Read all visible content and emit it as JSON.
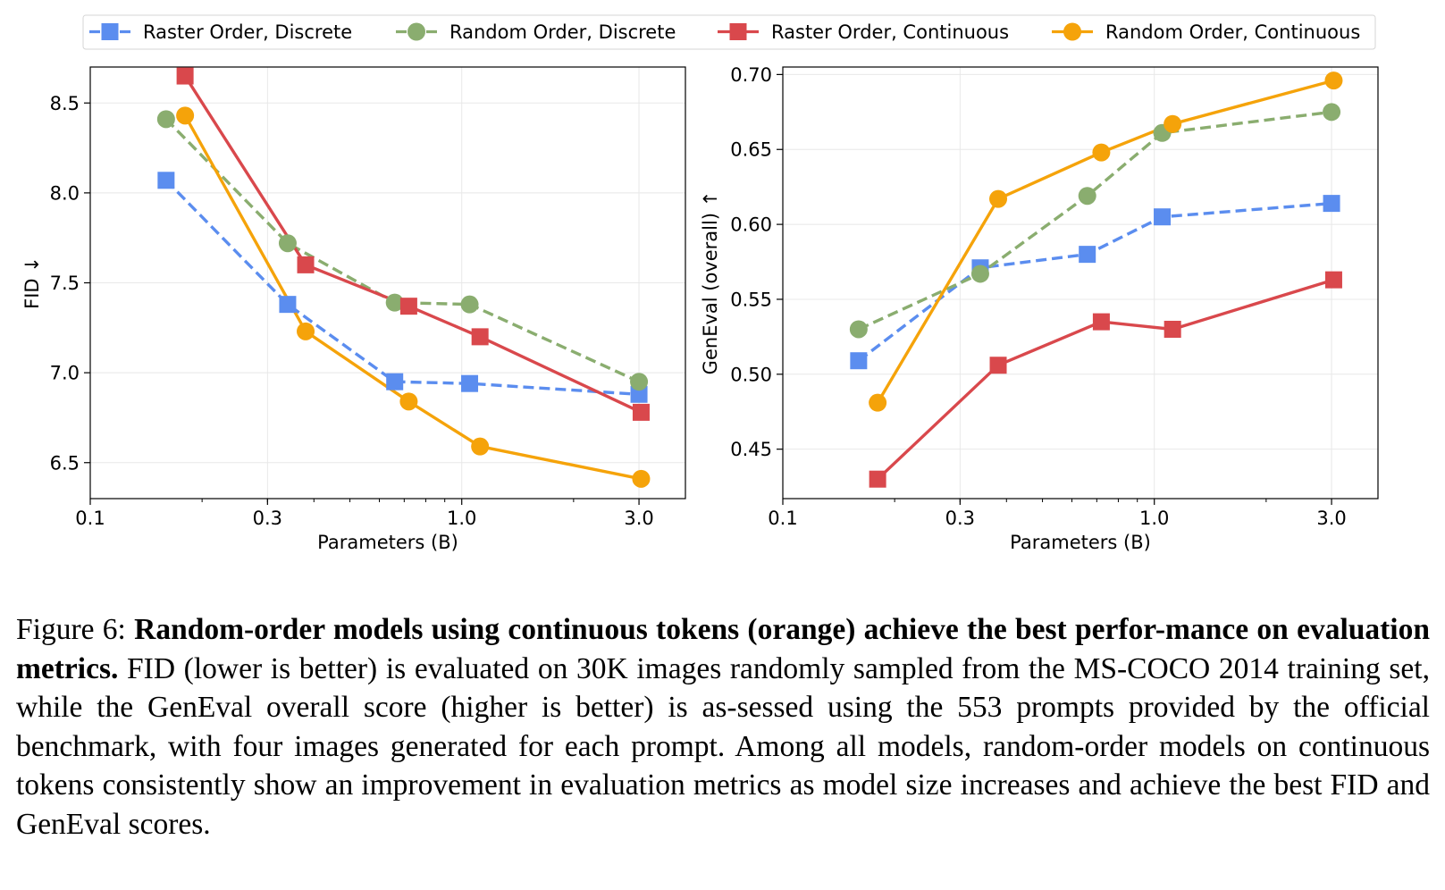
{
  "legend": {
    "entries": [
      {
        "name": "Raster Order, Discrete",
        "color": "#5b8def",
        "marker": "square",
        "dash": true
      },
      {
        "name": "Random Order, Discrete",
        "color": "#8aad6f",
        "marker": "circle",
        "dash": true
      },
      {
        "name": "Raster Order, Continuous",
        "color": "#d9484c",
        "marker": "square",
        "dash": false
      },
      {
        "name": "Random Order, Continuous",
        "color": "#f5a30a",
        "marker": "circle",
        "dash": false
      }
    ]
  },
  "chart_data": [
    {
      "type": "line",
      "xscale": "log",
      "xlabel": "Parameters (B)",
      "ylabel": "FID ↓",
      "xticks": [
        0.1,
        0.3,
        1.0,
        3.0
      ],
      "xticklabels": [
        "0.1",
        "0.3",
        "1.0",
        "3.0"
      ],
      "yticks": [
        6.5,
        7.0,
        7.5,
        8.0,
        8.5
      ],
      "yticklabels": [
        "6.5",
        "7.0",
        "7.5",
        "8.0",
        "8.5"
      ],
      "xlim": [
        0.1,
        4.0
      ],
      "ylim": [
        6.3,
        8.7
      ],
      "grid": true,
      "series": [
        {
          "name": "Raster Order, Discrete",
          "x": [
            0.16,
            0.34,
            0.66,
            1.05,
            3.0
          ],
          "y": [
            8.07,
            7.38,
            6.95,
            6.94,
            6.88
          ]
        },
        {
          "name": "Random Order, Discrete",
          "x": [
            0.16,
            0.34,
            0.66,
            1.05,
            3.0
          ],
          "y": [
            8.41,
            7.72,
            7.39,
            7.38,
            6.95
          ]
        },
        {
          "name": "Raster Order, Continuous",
          "x": [
            0.18,
            0.38,
            0.72,
            1.12,
            3.04
          ],
          "y": [
            8.65,
            7.6,
            7.37,
            7.2,
            6.78
          ]
        },
        {
          "name": "Random Order, Continuous",
          "x": [
            0.18,
            0.38,
            0.72,
            1.12,
            3.04
          ],
          "y": [
            8.43,
            7.23,
            6.84,
            6.59,
            6.41
          ]
        }
      ]
    },
    {
      "type": "line",
      "xscale": "log",
      "xlabel": "Parameters (B)",
      "ylabel": "GenEval (overall) ↑",
      "xticks": [
        0.1,
        0.3,
        1.0,
        3.0
      ],
      "xticklabels": [
        "0.1",
        "0.3",
        "1.0",
        "3.0"
      ],
      "yticks": [
        0.45,
        0.5,
        0.55,
        0.6,
        0.65,
        0.7
      ],
      "yticklabels": [
        "0.45",
        "0.50",
        "0.55",
        "0.60",
        "0.65",
        "0.70"
      ],
      "xlim": [
        0.1,
        4.0
      ],
      "ylim": [
        0.417,
        0.705
      ],
      "grid": true,
      "series": [
        {
          "name": "Raster Order, Discrete",
          "x": [
            0.16,
            0.34,
            0.66,
            1.05,
            3.0
          ],
          "y": [
            0.509,
            0.571,
            0.58,
            0.605,
            0.614
          ]
        },
        {
          "name": "Random Order, Discrete",
          "x": [
            0.16,
            0.34,
            0.66,
            1.05,
            3.0
          ],
          "y": [
            0.53,
            0.567,
            0.619,
            0.661,
            0.675
          ]
        },
        {
          "name": "Raster Order, Continuous",
          "x": [
            0.18,
            0.38,
            0.72,
            1.12,
            3.04
          ],
          "y": [
            0.43,
            0.506,
            0.535,
            0.53,
            0.563
          ]
        },
        {
          "name": "Random Order, Continuous",
          "x": [
            0.18,
            0.38,
            0.72,
            1.12,
            3.04
          ],
          "y": [
            0.481,
            0.617,
            0.648,
            0.667,
            0.696
          ]
        }
      ]
    }
  ],
  "caption": {
    "label": "Figure 6:",
    "bold": "Random-order models using continuous tokens (orange) achieve the best perfor-mance on evaluation metrics.",
    "body": "FID (lower is better) is evaluated on 30K images randomly sampled from the MS-COCO 2014 training set, while the GenEval overall score (higher is better) is as-sessed using the 553 prompts provided by the official benchmark, with four images generated for each prompt. Among all models, random-order models on continuous tokens consistently show an improvement in evaluation metrics as model size increases and achieve the best FID and GenEval scores."
  }
}
